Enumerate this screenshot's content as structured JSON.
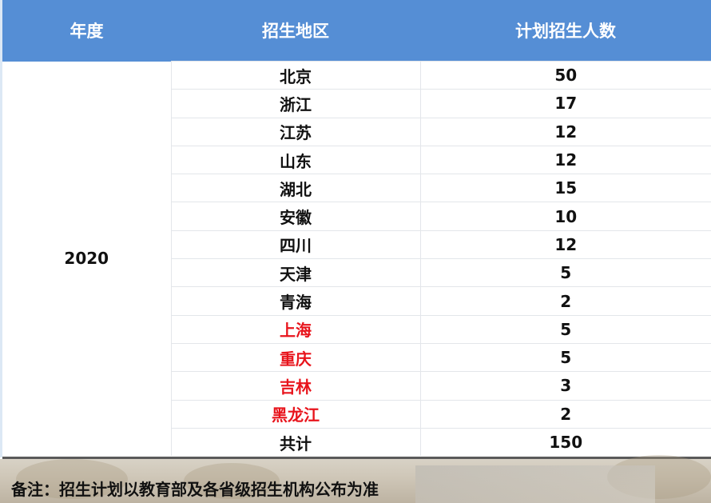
{
  "header": {
    "year": "年度",
    "region": "招生地区",
    "count": "计划招生人数"
  },
  "year": "2020",
  "rows": [
    {
      "region": "北京",
      "count": "50",
      "highlight": false
    },
    {
      "region": "浙江",
      "count": "17",
      "highlight": false
    },
    {
      "region": "江苏",
      "count": "12",
      "highlight": false
    },
    {
      "region": "山东",
      "count": "12",
      "highlight": false
    },
    {
      "region": "湖北",
      "count": "15",
      "highlight": false
    },
    {
      "region": "安徽",
      "count": "10",
      "highlight": false
    },
    {
      "region": "四川",
      "count": "12",
      "highlight": false
    },
    {
      "region": "天津",
      "count": "5",
      "highlight": false
    },
    {
      "region": "青海",
      "count": "2",
      "highlight": false
    },
    {
      "region": "上海",
      "count": "5",
      "highlight": true
    },
    {
      "region": "重庆",
      "count": "5",
      "highlight": true
    },
    {
      "region": "吉林",
      "count": "3",
      "highlight": true
    },
    {
      "region": "黑龙江",
      "count": "2",
      "highlight": true
    },
    {
      "region": "共计",
      "count": "150",
      "highlight": false
    }
  ],
  "note": "备注：招生计划以教育部及各省级招生机构公布为准",
  "colors": {
    "header_bg": "#558ed5",
    "highlight_text": "#e8141c"
  }
}
